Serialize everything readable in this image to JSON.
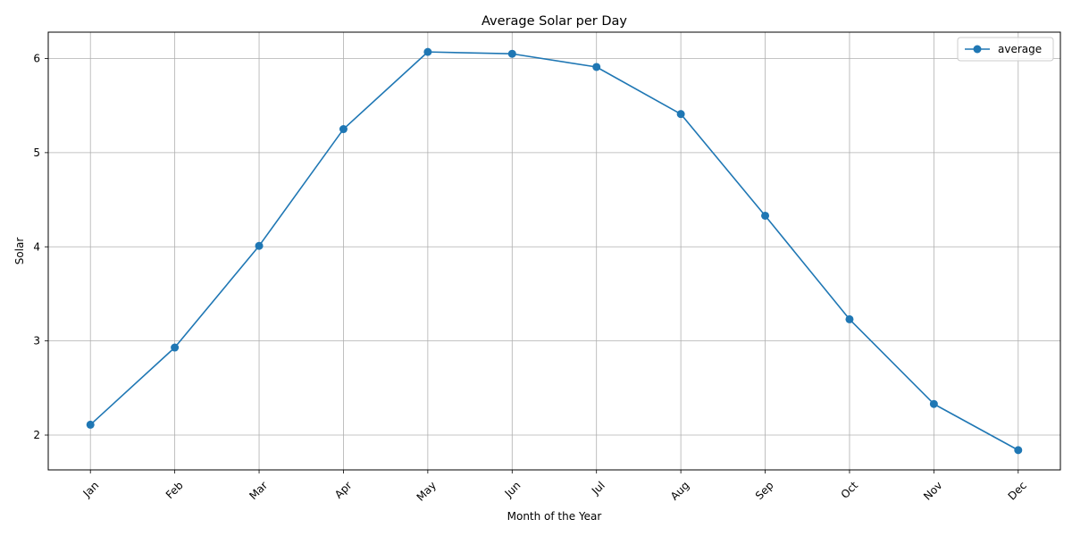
{
  "chart_data": {
    "type": "line",
    "title": "Average Solar per Day",
    "xlabel": "Month of the Year",
    "ylabel": "Solar",
    "categories": [
      "Jan",
      "Feb",
      "Mar",
      "Apr",
      "May",
      "Jun",
      "Jul",
      "Aug",
      "Sep",
      "Oct",
      "Nov",
      "Dec"
    ],
    "series": [
      {
        "name": "average",
        "color": "#1f77b4",
        "marker": "circle",
        "values": [
          2.11,
          2.93,
          4.01,
          5.25,
          6.07,
          6.05,
          5.91,
          5.41,
          4.33,
          3.23,
          2.33,
          1.84
        ]
      }
    ],
    "ylim": [
      1.63,
      6.28
    ],
    "yticks": [
      "2",
      "3",
      "4",
      "5",
      "6"
    ],
    "grid": true,
    "legend_position": "top-right",
    "xtick_rotation_deg": 45
  }
}
